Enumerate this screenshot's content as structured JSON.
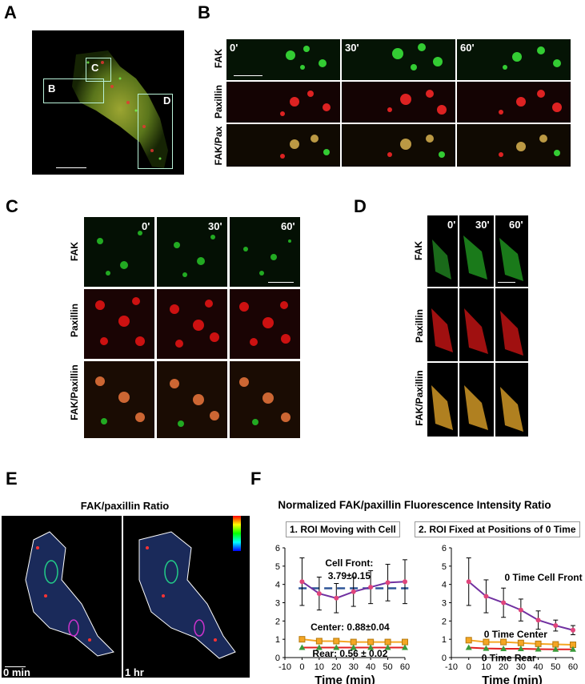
{
  "panel_labels": {
    "a": "A",
    "b": "B",
    "c": "C",
    "d": "D",
    "e": "E",
    "f": "F"
  },
  "panel_a": {
    "roi_b": "B",
    "roi_c": "C",
    "roi_d": "D"
  },
  "time_labels": {
    "t0": "0'",
    "t30": "30'",
    "t60": "60'"
  },
  "panel_b": {
    "rows": [
      "FAK",
      "Paxillin",
      "FAK/Pax"
    ]
  },
  "panel_c": {
    "rows": [
      "FAK",
      "Paxillin",
      "FAK/Paxillin"
    ]
  },
  "panel_d": {
    "rows": [
      "FAK",
      "Paxillin",
      "FAK/Paxillin"
    ]
  },
  "panel_e": {
    "title": "FAK/paxillin Ratio",
    "left_time": "0 min",
    "right_time": "1 hr"
  },
  "panel_f": {
    "title": "Normalized  FAK/paxillin Fluorescence Intensity Ratio",
    "left_box": "1. ROI Moving with Cell",
    "right_box": "2. ROI Fixed at Positions of 0 Time"
  },
  "colors": {
    "front": "#7030a0",
    "front_marker": "#e0457b",
    "center": "#f5a623",
    "rear": "#e02020",
    "rear_marker": "#3a9a3a",
    "mean_line": "#2f5597"
  },
  "chart_data": [
    {
      "type": "line",
      "title": "1. ROI Moving with Cell",
      "xlabel": "Time (min)",
      "ylabel": "",
      "x": [
        0,
        10,
        20,
        30,
        40,
        50,
        60
      ],
      "xlim": [
        -10,
        60
      ],
      "ylim": [
        0,
        6
      ],
      "xticks": [
        -10,
        0,
        10,
        20,
        30,
        40,
        50,
        60
      ],
      "yticks": [
        0,
        1,
        2,
        3,
        4,
        5,
        6
      ],
      "series": [
        {
          "name": "Cell Front",
          "values": [
            4.15,
            3.5,
            3.25,
            3.6,
            3.85,
            4.1,
            4.15
          ],
          "err": [
            1.3,
            0.9,
            0.8,
            0.8,
            0.9,
            1.0,
            1.2
          ]
        },
        {
          "name": "Center",
          "values": [
            1.0,
            0.9,
            0.9,
            0.85,
            0.85,
            0.85,
            0.85
          ]
        },
        {
          "name": "Rear",
          "values": [
            0.55,
            0.55,
            0.55,
            0.55,
            0.55,
            0.55,
            0.55
          ]
        }
      ],
      "mean_line": 3.79,
      "annotations": [
        "Cell Front:",
        "3.79±0.15",
        "Center: 0.88±0.04",
        "Rear: 0.56 ± 0.02"
      ]
    },
    {
      "type": "line",
      "title": "2. ROI Fixed at Positions of 0 Time",
      "xlabel": "Time (min)",
      "ylabel": "",
      "x": [
        0,
        10,
        20,
        30,
        40,
        50,
        60
      ],
      "xlim": [
        -10,
        60
      ],
      "ylim": [
        0,
        6
      ],
      "xticks": [
        -10,
        0,
        10,
        20,
        30,
        40,
        50,
        60
      ],
      "yticks": [
        0,
        1,
        2,
        3,
        4,
        5,
        6
      ],
      "series": [
        {
          "name": "0 Time Cell Front",
          "values": [
            4.15,
            3.35,
            3.0,
            2.6,
            2.05,
            1.75,
            1.5
          ],
          "err": [
            1.3,
            0.9,
            0.8,
            0.6,
            0.5,
            0.3,
            0.25
          ]
        },
        {
          "name": "0 Time Center",
          "values": [
            0.95,
            0.85,
            0.85,
            0.8,
            0.75,
            0.72,
            0.7
          ]
        },
        {
          "name": "0 Time Rear",
          "values": [
            0.55,
            0.5,
            0.48,
            0.48,
            0.46,
            0.45,
            0.45
          ]
        }
      ],
      "annotations": [
        "0 Time Cell Front",
        "0 Time Center",
        "0 Time Rear"
      ]
    }
  ]
}
